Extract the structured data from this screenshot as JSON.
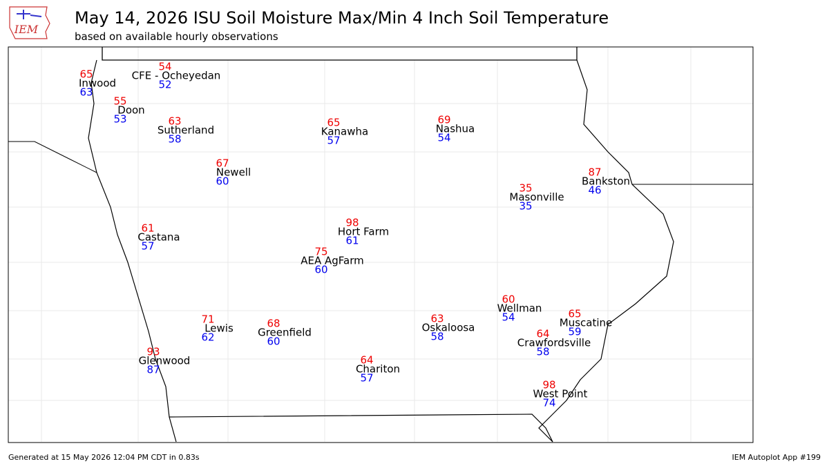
{
  "header": {
    "logo": "IEM",
    "title": "May 14, 2026 ISU Soil Moisture Max/Min 4 Inch Soil Temperature",
    "subtitle": "based on available hourly observations"
  },
  "stations": [
    {
      "name": "Inwood",
      "max": 65,
      "min": 63
    },
    {
      "name": "CFE - Ocheyedan",
      "max": 54,
      "min": 52
    },
    {
      "name": "Doon",
      "max": 55,
      "min": 53
    },
    {
      "name": "Sutherland",
      "max": 63,
      "min": 58
    },
    {
      "name": "Kanawha",
      "max": 65,
      "min": 57
    },
    {
      "name": "Nashua",
      "max": 69,
      "min": 54
    },
    {
      "name": "Newell",
      "max": 67,
      "min": 60
    },
    {
      "name": "Bankston",
      "max": 87,
      "min": 46
    },
    {
      "name": "Masonville",
      "max": 35,
      "min": 35
    },
    {
      "name": "Castana",
      "max": 61,
      "min": 57
    },
    {
      "name": "Hort Farm",
      "max": 98,
      "min": 61
    },
    {
      "name": "AEA AgFarm",
      "max": 75,
      "min": 60
    },
    {
      "name": "Wellman",
      "max": 60,
      "min": 54
    },
    {
      "name": "Muscatine",
      "max": 65,
      "min": 59
    },
    {
      "name": "Lewis",
      "max": 71,
      "min": 62
    },
    {
      "name": "Greenfield",
      "max": 68,
      "min": 60
    },
    {
      "name": "Oskaloosa",
      "max": 63,
      "min": 58
    },
    {
      "name": "Crawfordsville",
      "max": 64,
      "min": 58
    },
    {
      "name": "Glenwood",
      "max": 93,
      "min": 87
    },
    {
      "name": "Chariton",
      "max": 64,
      "min": 57
    },
    {
      "name": "West Point",
      "max": 98,
      "min": 74
    }
  ],
  "footer": {
    "generated": "Generated at 15 May 2026 12:04 PM CDT in 0.83s",
    "app": "IEM Autoplot App #199"
  }
}
